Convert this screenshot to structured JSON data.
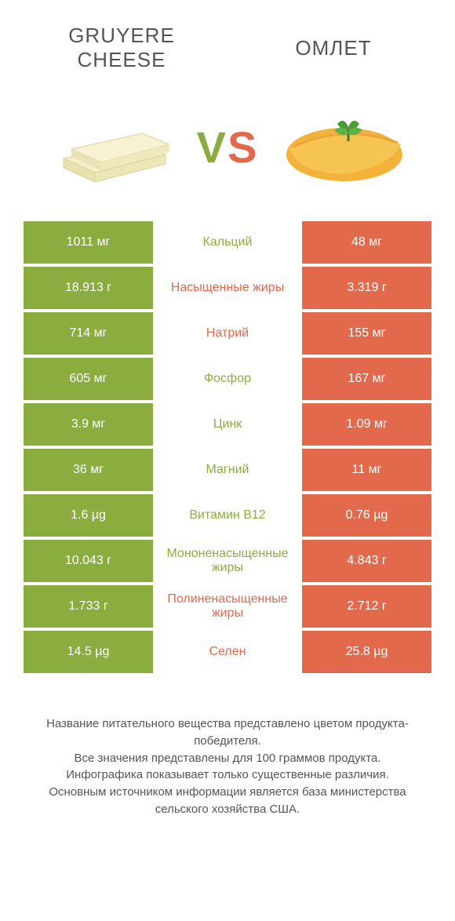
{
  "header": {
    "left_title": "Gruyere Cheese",
    "right_title": "Омлет",
    "vs": {
      "v": "V",
      "s": "S"
    }
  },
  "colors": {
    "green": "#8bad3f",
    "orange": "#e2694c",
    "text": "#555555",
    "background": "#ffffff"
  },
  "rows": [
    {
      "left": "1011 мг",
      "label": "Кальций",
      "right": "48 мг",
      "winner": "left"
    },
    {
      "left": "18.913 г",
      "label": "Насыщенные жиры",
      "right": "3.319 г",
      "winner": "right"
    },
    {
      "left": "714 мг",
      "label": "Натрий",
      "right": "155 мг",
      "winner": "right"
    },
    {
      "left": "605 мг",
      "label": "Фосфор",
      "right": "167 мг",
      "winner": "left"
    },
    {
      "left": "3.9 мг",
      "label": "Цинк",
      "right": "1.09 мг",
      "winner": "left"
    },
    {
      "left": "36 мг",
      "label": "Магний",
      "right": "11 мг",
      "winner": "left"
    },
    {
      "left": "1.6 µg",
      "label": "Витамин B12",
      "right": "0.76 µg",
      "winner": "left"
    },
    {
      "left": "10.043 г",
      "label": "Мононенасыщенные жиры",
      "right": "4.843 г",
      "winner": "left"
    },
    {
      "left": "1.733 г",
      "label": "Полиненасыщенные жиры",
      "right": "2.712 г",
      "winner": "right"
    },
    {
      "left": "14.5 µg",
      "label": "Селен",
      "right": "25.8 µg",
      "winner": "right"
    }
  ],
  "footer_lines": [
    "Название питательного вещества представлено цветом продукта-победителя.",
    "Все значения представлены для 100 граммов продукта.",
    "Инфографика показывает только существенные различия.",
    "Основным источником информации является база министерства сельского хозяйства США."
  ]
}
